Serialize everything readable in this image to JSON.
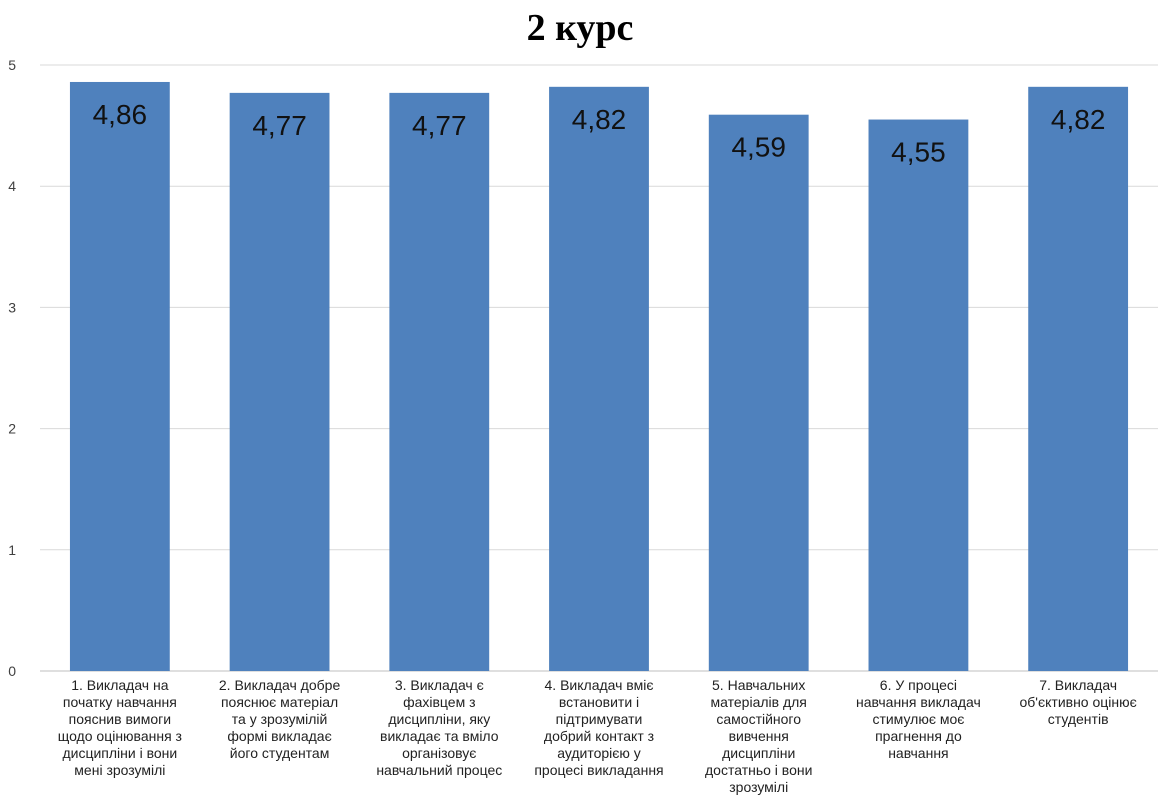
{
  "chart_data": {
    "type": "bar",
    "title": "2 курс",
    "xlabel": "",
    "ylabel": "",
    "ylim": [
      0,
      5
    ],
    "yticks": [
      0,
      1,
      2,
      3,
      4,
      5
    ],
    "grid": true,
    "bar_color": "#4f81bd",
    "categories": [
      "1. Викладач на початку навчання пояснив вимоги щодо оцінювання з дисципліни і вони мені зрозумілі",
      "2. Викладач добре пояснює матеріал та у зрозумілій формі викладає його студентам",
      "3. Викладач є фахівцем з дисципліни, яку викладає та вміло організовує навчальний процес",
      "4. Викладач вміє встановити і підтримувати добрий контакт з аудиторією у процесі викладання",
      "5. Навчальних матеріалів для самостійного вивчення дисципліни достатньо і вони зрозумілі",
      "6.  У процесі навчання викладач стимулює моє прагнення до навчання",
      "7. Викладач об'єктивно оцінює студентів"
    ],
    "category_lines": [
      [
        "1. Викладач на",
        "початку навчання",
        "пояснив вимоги",
        "щодо оцінювання з",
        "дисципліни і вони",
        "мені зрозумілі"
      ],
      [
        "2. Викладач добре",
        "пояснює матеріал",
        "та у зрозумілій",
        "формі викладає",
        "його студентам"
      ],
      [
        "3. Викладач є",
        "фахівцем з",
        "дисципліни, яку",
        "викладає та вміло",
        "організовує",
        "навчальний процес"
      ],
      [
        "4. Викладач вміє",
        "встановити і",
        "підтримувати",
        "добрий контакт з",
        "аудиторією у",
        "процесі викладання"
      ],
      [
        "5. Навчальних",
        "матеріалів для",
        "самостійного",
        "вивчення",
        "дисципліни",
        "достатньо і вони",
        "зрозумілі"
      ],
      [
        "6.  У процесі",
        "навчання викладач",
        "стимулює моє",
        "прагнення до",
        "навчання"
      ],
      [
        "7. Викладач",
        "об'єктивно оцінює",
        "студентів"
      ]
    ],
    "values": [
      4.86,
      4.77,
      4.77,
      4.82,
      4.59,
      4.55,
      4.82
    ],
    "data_labels": [
      "4,86",
      "4,77",
      "4,77",
      "4,82",
      "4,59",
      "4,55",
      "4,82"
    ]
  }
}
